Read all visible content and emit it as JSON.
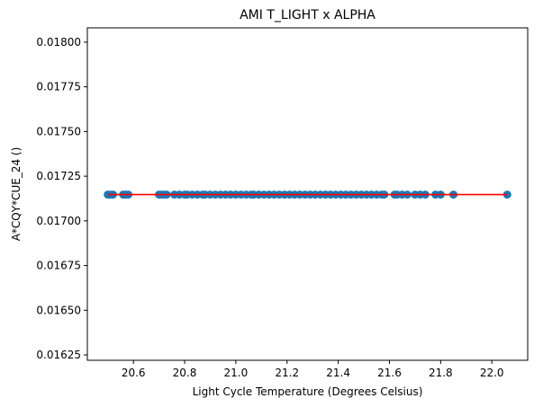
{
  "chart_data": {
    "type": "scatter",
    "title": "AMI T_LIGHT x ALPHA",
    "xlabel": "Light Cycle Temperature (Degrees Celsius)",
    "ylabel": "A*CQY*CUE_24 ()",
    "xlim": [
      20.42,
      22.14
    ],
    "ylim": [
      0.01622,
      0.01808
    ],
    "xticks": [
      "20.6",
      "20.8",
      "21.0",
      "21.2",
      "21.4",
      "21.6",
      "21.8",
      "22.0"
    ],
    "yticks": [
      "0.01625",
      "0.01650",
      "0.01675",
      "0.01700",
      "0.01725",
      "0.01750",
      "0.01775",
      "0.01800"
    ],
    "grid": false,
    "series": [
      {
        "marker_color": "#1f77b4",
        "y": 0.017147,
        "x": [
          20.5,
          20.51,
          20.52,
          20.56,
          20.57,
          20.58,
          20.7,
          20.71,
          20.72,
          20.73,
          20.76,
          20.78,
          20.8,
          20.81,
          20.83,
          20.85,
          20.87,
          20.88,
          20.9,
          20.92,
          20.94,
          20.96,
          20.98,
          21.0,
          21.02,
          21.04,
          21.06,
          21.07,
          21.09,
          21.11,
          21.13,
          21.15,
          21.17,
          21.19,
          21.21,
          21.23,
          21.25,
          21.27,
          21.29,
          21.31,
          21.33,
          21.35,
          21.37,
          21.39,
          21.41,
          21.43,
          21.45,
          21.47,
          21.49,
          21.51,
          21.53,
          21.55,
          21.57,
          21.58,
          21.62,
          21.63,
          21.65,
          21.67,
          21.7,
          21.72,
          21.74,
          21.78,
          21.8,
          21.85,
          22.06
        ]
      }
    ],
    "fit_line": {
      "color": "#ff0000",
      "x": [
        20.5,
        22.06
      ],
      "y": [
        0.017147,
        0.017147
      ]
    }
  }
}
